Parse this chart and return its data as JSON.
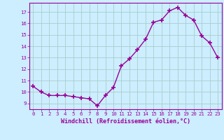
{
  "x": [
    0,
    1,
    2,
    3,
    4,
    5,
    6,
    7,
    8,
    9,
    10,
    11,
    12,
    13,
    14,
    15,
    16,
    17,
    18,
    19,
    20,
    21,
    22,
    23
  ],
  "y": [
    10.5,
    10.0,
    9.7,
    9.7,
    9.7,
    9.6,
    9.5,
    9.4,
    8.8,
    9.7,
    10.4,
    12.3,
    12.9,
    13.7,
    14.6,
    16.1,
    16.3,
    17.1,
    17.4,
    16.7,
    16.3,
    14.9,
    14.3,
    13.0
  ],
  "line_color": "#990099",
  "marker": "+",
  "marker_size": 4,
  "bg_color": "#cceeff",
  "grid_color": "#aacccc",
  "xlabel": "Windchill (Refroidissement éolien,°C)",
  "xlabel_color": "#990099",
  "ylabel_ticks": [
    9,
    10,
    11,
    12,
    13,
    14,
    15,
    16,
    17
  ],
  "ylim": [
    8.5,
    17.8
  ],
  "xlim": [
    -0.5,
    23.5
  ],
  "xticks": [
    0,
    1,
    2,
    3,
    4,
    5,
    6,
    7,
    8,
    9,
    10,
    11,
    12,
    13,
    14,
    15,
    16,
    17,
    18,
    19,
    20,
    21,
    22,
    23
  ],
  "tick_color": "#990099",
  "tick_fontsize": 5.2,
  "xlabel_fontsize": 6.0,
  "linewidth": 1.0,
  "marker_lw": 1.2
}
